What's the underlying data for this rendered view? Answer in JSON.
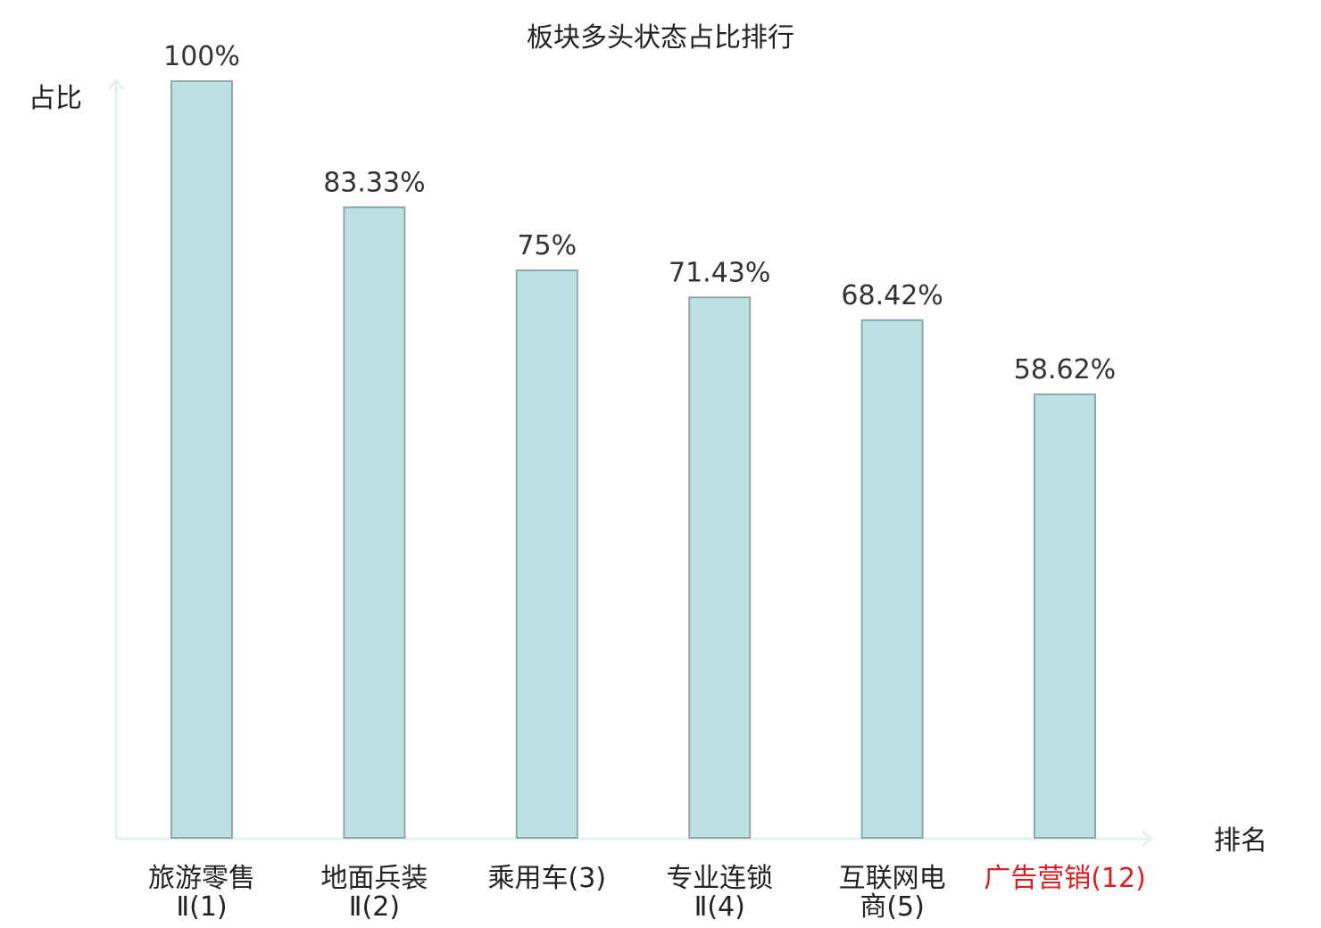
{
  "chart_data": {
    "type": "bar",
    "title": "板块多头状态占比排行",
    "ylabel": "占比",
    "xlabel": "排名",
    "categories": [
      [
        "旅游零售",
        "Ⅱ(1)"
      ],
      [
        "地面兵装",
        "Ⅱ(2)"
      ],
      [
        "乘用车(3)"
      ],
      [
        "专业连锁",
        "Ⅱ(4)"
      ],
      [
        "互联网电",
        "商(5)"
      ],
      [
        "广告营销(12)"
      ]
    ],
    "values": [
      100,
      83.33,
      75,
      71.43,
      68.42,
      58.62
    ],
    "value_labels": [
      "100%",
      "83.33%",
      "75%",
      "71.43%",
      "68.42%",
      "58.62%"
    ],
    "highlight_index": 5,
    "ylim": [
      0,
      100
    ],
    "grid": false,
    "colors": {
      "bar_fill": "#bde0e2",
      "bar_stroke": "#8fa9ab",
      "axis": "#e2f2ef",
      "highlight_text": "#e11d1d",
      "text": "#222222"
    }
  }
}
